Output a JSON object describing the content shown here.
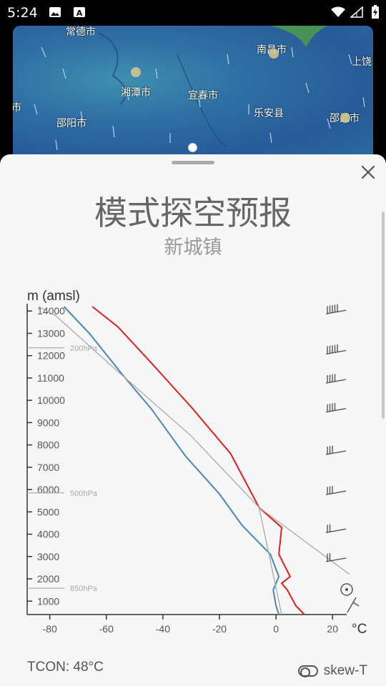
{
  "status_bar": {
    "time": "5:24"
  },
  "map": {
    "labels": [
      "常德市",
      "南昌市",
      "上饶",
      "湘潭市",
      "宜春市",
      "市",
      "乐安县",
      "邵武市",
      "邵阳市"
    ]
  },
  "sheet": {
    "title": "模式探空预报",
    "subtitle": "新城镇"
  },
  "chart_data": {
    "type": "line",
    "title": "",
    "ylabel": "m (amsl)",
    "xlabel": "°C",
    "xlim": [
      -88,
      25
    ],
    "ylim": [
      400,
      14200
    ],
    "x_ticks": [
      -80,
      -60,
      -40,
      -20,
      0,
      20
    ],
    "y_ticks": [
      1000,
      2000,
      3000,
      4000,
      5000,
      6000,
      7000,
      8000,
      9000,
      10000,
      11000,
      12000,
      13000,
      14000
    ],
    "pressure_levels": [
      {
        "label": "200hPa",
        "height": 12350
      },
      {
        "label": "500hPa",
        "height": 5850
      },
      {
        "label": "850hPa",
        "height": 1580
      }
    ],
    "series": [
      {
        "color": "#e31c1c",
        "points": [
          [
            10,
            400
          ],
          [
            7,
            800
          ],
          [
            4,
            1500
          ],
          [
            2,
            1800
          ],
          [
            5,
            2100
          ],
          [
            1,
            3100
          ],
          [
            2,
            4300
          ],
          [
            -6,
            5200
          ],
          [
            -16,
            7600
          ],
          [
            -30,
            9700
          ],
          [
            -45,
            11800
          ],
          [
            -56,
            13300
          ],
          [
            -65,
            14200
          ]
        ]
      },
      {
        "color": "#4a86b8",
        "points": [
          [
            1,
            400
          ],
          [
            0,
            800
          ],
          [
            -1,
            1500
          ],
          [
            0,
            1800
          ],
          [
            1,
            2100
          ],
          [
            -2,
            3100
          ],
          [
            -12,
            4400
          ],
          [
            -20,
            5800
          ],
          [
            -32,
            7500
          ],
          [
            -44,
            9600
          ],
          [
            -54,
            11100
          ],
          [
            -66,
            13000
          ],
          [
            -75,
            14200
          ]
        ]
      },
      {
        "color": "#a9a9a9",
        "points": [
          [
            2,
            400
          ],
          [
            -6,
            5200
          ],
          [
            -30,
            8400
          ],
          [
            -56,
            11300
          ],
          [
            -78,
            13800
          ],
          [
            -84,
            14200
          ]
        ]
      },
      {
        "color": "#a9a9a9",
        "points": [
          [
            -6,
            5200
          ],
          [
            26,
            2200
          ]
        ]
      }
    ],
    "wind_barbs_heights": [
      14000,
      12200,
      10900,
      9600,
      7700,
      5900,
      4200,
      2900
    ]
  },
  "footer": {
    "tcon": "TCON: 48°C",
    "skewt_label": "skew-T"
  },
  "colors": {
    "sheet_bg": "#f7f7f7",
    "temp": "#e31c1c",
    "dewpoint": "#4a86b8",
    "adiabat": "#a9a9a9"
  }
}
